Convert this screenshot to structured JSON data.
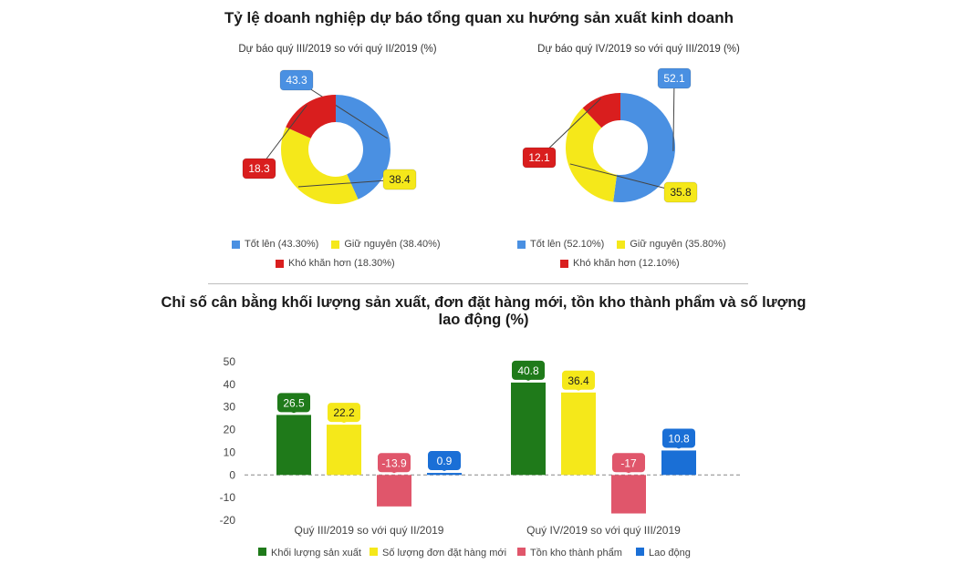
{
  "header": {
    "title": "Tỷ lệ doanh nghiệp dự báo tổng quan xu hướng sản xuất kinh doanh"
  },
  "colors": {
    "blue": "#4a90e2",
    "yellow": "#f5e81a",
    "red": "#d91e1e",
    "green": "#1f7a1a",
    "pink": "#e0566b",
    "darkblue": "#1a6fd6"
  },
  "chart_data": [
    {
      "type": "pie",
      "title": "Dự báo quý III/2019 so với quý II/2019 (%)",
      "slices": [
        {
          "label": "Tốt lên",
          "value": 43.3,
          "value_label": "43.3",
          "legend": "Tốt lên (43.30%)",
          "color": "#4a90e2"
        },
        {
          "label": "Giữ nguyên",
          "value": 38.4,
          "value_label": "38.4",
          "legend": "Giữ nguyên (38.40%)",
          "color": "#f5e81a"
        },
        {
          "label": "Khó khăn hơn",
          "value": 18.3,
          "value_label": "18.3",
          "legend": "Khó khăn hơn (18.30%)",
          "color": "#d91e1e"
        }
      ]
    },
    {
      "type": "pie",
      "title": "Dự báo quý IV/2019 so với quý III/2019 (%)",
      "slices": [
        {
          "label": "Tốt lên",
          "value": 52.1,
          "value_label": "52.1",
          "legend": "Tốt lên (52.10%)",
          "color": "#4a90e2"
        },
        {
          "label": "Giữ nguyên",
          "value": 35.8,
          "value_label": "35.8",
          "legend": "Giữ nguyên (35.80%)",
          "color": "#f5e81a"
        },
        {
          "label": "Khó khăn hơn",
          "value": 12.1,
          "value_label": "12.1",
          "legend": "Khó khăn hơn (12.10%)",
          "color": "#d91e1e"
        }
      ]
    },
    {
      "type": "bar",
      "title": "Chỉ số cân bằng khối lượng sản xuất, đơn đặt hàng mới, tồn kho thành phẩm và số lượng lao động (%)",
      "categories": [
        "Quý III/2019 so với quý II/2019",
        "Quý IV/2019 so với quý III/2019"
      ],
      "series": [
        {
          "name": "Khối lượng sản xuất",
          "values": [
            26.5,
            40.8
          ],
          "color": "#1f7a1a"
        },
        {
          "name": "Số lượng đơn đặt hàng mới",
          "values": [
            22.2,
            36.4
          ],
          "color": "#f5e81a"
        },
        {
          "name": "Tồn kho thành phẩm",
          "values": [
            -13.9,
            -17
          ],
          "color": "#e0566b"
        },
        {
          "name": "Lao động",
          "values": [
            0.9,
            10.8
          ],
          "color": "#1a6fd6"
        }
      ],
      "yticks": [
        "50",
        "40",
        "30",
        "20",
        "10",
        "0",
        "-10",
        "-20"
      ],
      "ylim": [
        -20,
        50
      ],
      "grid": false,
      "legend_position": "bottom"
    }
  ]
}
